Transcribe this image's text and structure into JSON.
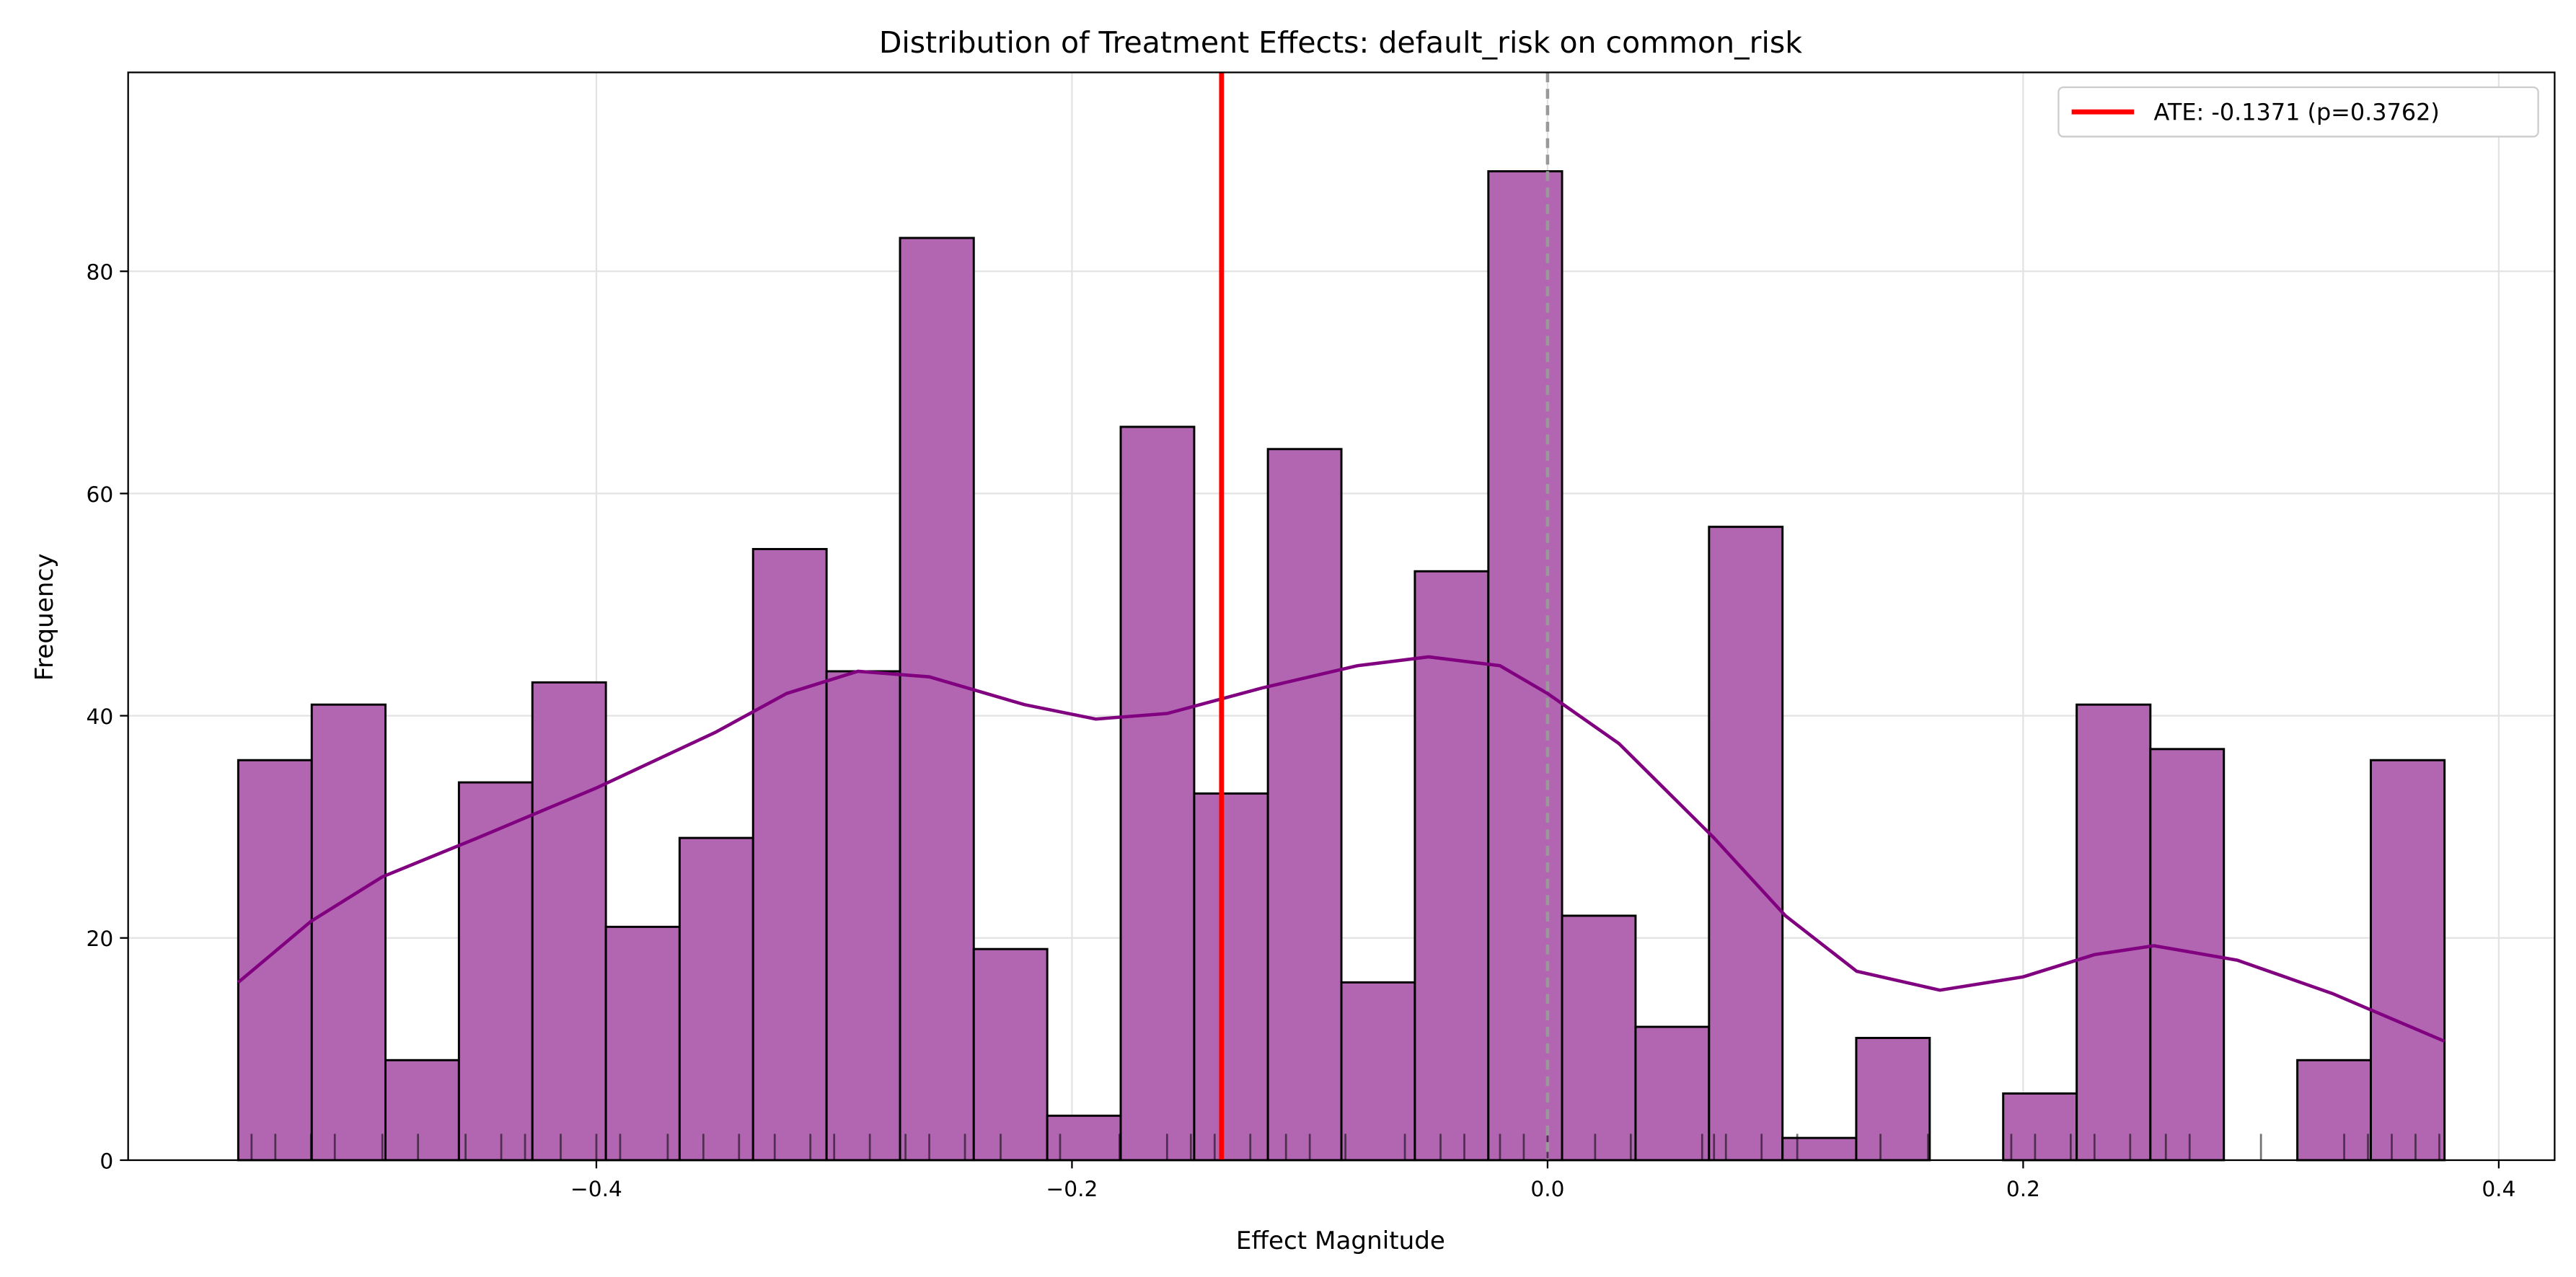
{
  "chart_data": {
    "type": "histogram",
    "title": "Distribution of Treatment Effects: default_risk on common_risk",
    "x_label": "Effect Magnitude",
    "y_label": "Frequency",
    "bins": [
      -0.5506,
      -0.5197,
      -0.4887,
      -0.4578,
      -0.4269,
      -0.396,
      -0.365,
      -0.3341,
      -0.3032,
      -0.2723,
      -0.2413,
      -0.2104,
      -0.1795,
      -0.1486,
      -0.1176,
      -0.0867,
      -0.0558,
      -0.0249,
      0.0061,
      0.037,
      0.0679,
      0.0988,
      0.1298,
      0.1607,
      0.1916,
      0.2225,
      0.2535,
      0.2844,
      0.3153,
      0.3462,
      0.3772
    ],
    "counts": [
      36,
      41,
      9,
      34,
      43,
      21,
      29,
      55,
      44,
      83,
      19,
      4,
      66,
      33,
      64,
      16,
      53,
      89,
      22,
      12,
      57,
      2,
      11,
      0,
      6,
      41,
      37,
      0,
      9,
      36
    ],
    "color": "#b266b2",
    "kde": {
      "color": "#800080",
      "x": [
        -0.5506,
        -0.52,
        -0.49,
        -0.45,
        -0.4,
        -0.35,
        -0.32,
        -0.29,
        -0.26,
        -0.22,
        -0.19,
        -0.16,
        -0.12,
        -0.08,
        -0.05,
        -0.02,
        0.0,
        0.03,
        0.07,
        0.1,
        0.13,
        0.165,
        0.2,
        0.23,
        0.255,
        0.29,
        0.33,
        0.3772
      ],
      "y": [
        16,
        21.5,
        25.5,
        29,
        33.5,
        38.5,
        42,
        44,
        43.5,
        41,
        39.7,
        40.2,
        42.5,
        44.5,
        45.3,
        44.5,
        42,
        37.5,
        29,
        22,
        17,
        15.3,
        16.5,
        18.5,
        19.3,
        18,
        15,
        10.7
      ]
    },
    "rug": [
      -0.545,
      -0.535,
      -0.52,
      -0.51,
      -0.49,
      -0.475,
      -0.455,
      -0.44,
      -0.43,
      -0.415,
      -0.4,
      -0.39,
      -0.37,
      -0.355,
      -0.34,
      -0.325,
      -0.31,
      -0.3,
      -0.285,
      -0.27,
      -0.26,
      -0.245,
      -0.23,
      -0.205,
      -0.18,
      -0.16,
      -0.15,
      -0.14,
      -0.125,
      -0.11,
      -0.1,
      -0.085,
      -0.06,
      -0.045,
      -0.035,
      -0.02,
      -0.01,
      0.0,
      0.02,
      0.035,
      0.065,
      0.07,
      0.075,
      0.09,
      0.105,
      0.14,
      0.16,
      0.195,
      0.205,
      0.22,
      0.23,
      0.245,
      0.26,
      0.27,
      0.3,
      0.335,
      0.345,
      0.355,
      0.365,
      0.375
    ],
    "ate": {
      "value": -0.1371,
      "label": "ATE: -0.1371 (p=0.3762)",
      "color": "#ff0000"
    },
    "reference_line": 0,
    "xlim": [
      -0.5969,
      0.4235
    ],
    "ylim": [
      0,
      97.9
    ],
    "xticks": [
      {
        "value": -0.4,
        "label": "−0.4"
      },
      {
        "value": -0.2,
        "label": "−0.2"
      },
      {
        "value": 0,
        "label": "0.0"
      },
      {
        "value": 0.2,
        "label": "0.2"
      },
      {
        "value": 0.4,
        "label": "0.4"
      }
    ],
    "yticks": [
      0,
      20,
      40,
      60,
      80
    ],
    "grid": true,
    "legend": "upper right"
  }
}
